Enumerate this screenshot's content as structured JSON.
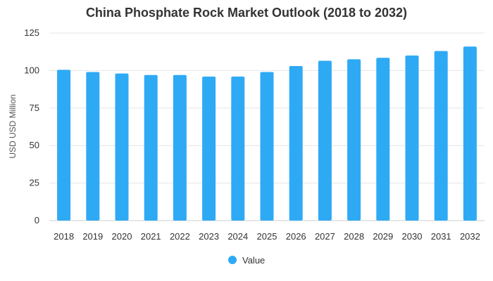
{
  "chart_data": {
    "type": "bar",
    "title": "China Phosphate Rock Market Outlook (2018 to 2032)",
    "xlabel": "",
    "ylabel": "USD USD Million",
    "ylim": [
      0,
      125
    ],
    "yticks": [
      0,
      25,
      50,
      75,
      100,
      125
    ],
    "grid": true,
    "legend_position": "bottom",
    "bar_color": "#2eaaf5",
    "categories": [
      "2018",
      "2019",
      "2020",
      "2021",
      "2022",
      "2023",
      "2024",
      "2025",
      "2026",
      "2027",
      "2028",
      "2029",
      "2030",
      "2031",
      "2032"
    ],
    "series": [
      {
        "name": "Value",
        "values": [
          100.5,
          99,
          98,
          97,
          97,
          96,
          96,
          99,
          103,
          106.5,
          107.5,
          108.5,
          110,
          113,
          116
        ]
      }
    ]
  }
}
